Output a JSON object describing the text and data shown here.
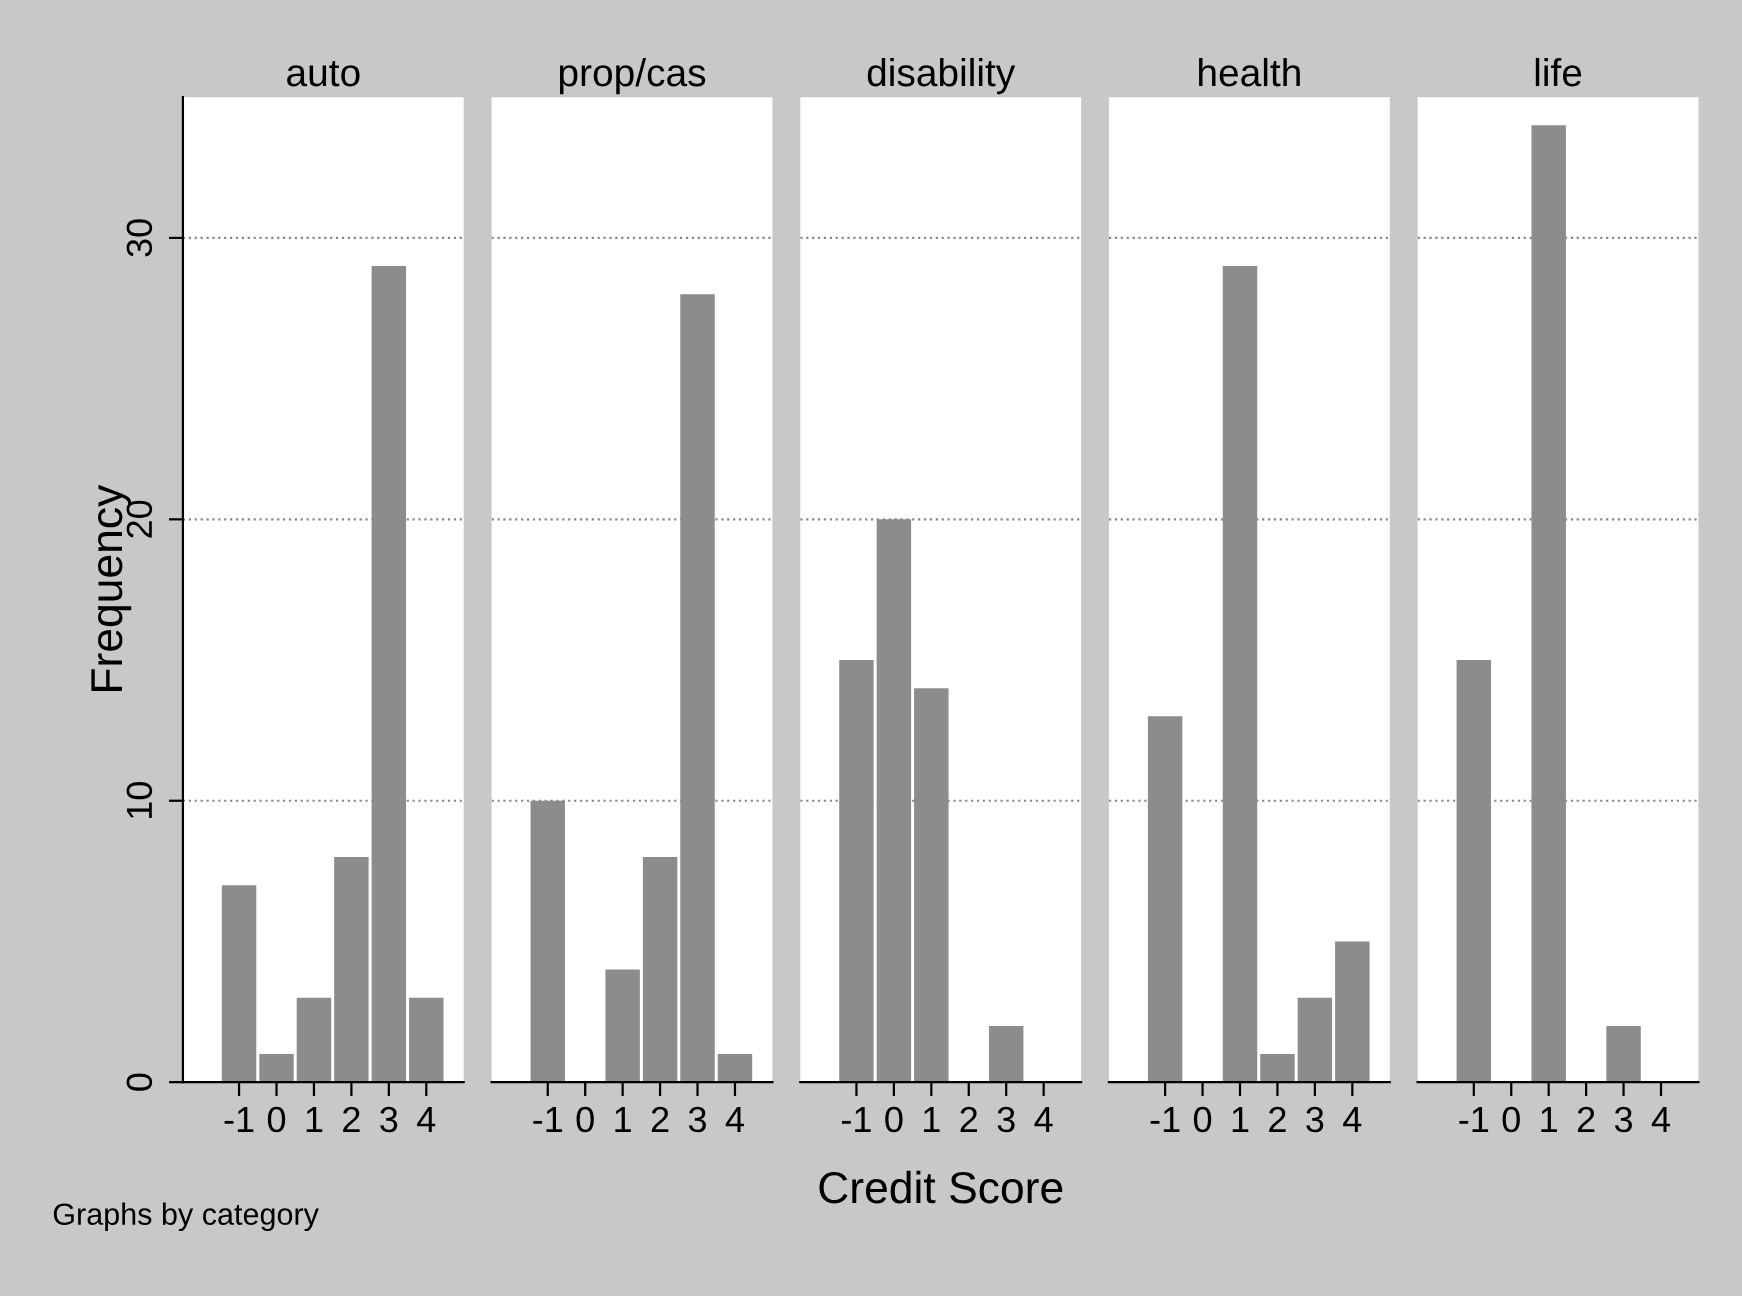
{
  "chart_data": [
    {
      "type": "histogram",
      "title": "auto",
      "ylabel": "Frequency",
      "bins": [
        -1.5,
        -0.5,
        0.5,
        1.5,
        2.5,
        3.5,
        4.5
      ],
      "values": [
        7,
        1,
        3,
        8,
        29,
        3
      ],
      "color": "#8c8c8c",
      "xlim": [
        -2.5,
        5
      ],
      "ylim": [
        0,
        35
      ],
      "xticks": [
        -1,
        0,
        1,
        2,
        3,
        4
      ],
      "yticks": [
        0,
        10,
        20,
        30
      ],
      "grid": "y",
      "annotations": [
        "Graphs by category"
      ]
    },
    {
      "type": "histogram",
      "title": "prop/cas",
      "bins": [
        -1.5,
        -0.5,
        0.5,
        1.5,
        2.5,
        3.5,
        4.5
      ],
      "values": [
        10,
        0,
        4,
        8,
        28,
        1
      ],
      "color": "#8c8c8c",
      "xlim": [
        -2.5,
        5
      ],
      "ylim": [
        0,
        35
      ],
      "xticks": [
        -1,
        0,
        1,
        2,
        3,
        4
      ],
      "yticks": [
        0,
        10,
        20,
        30
      ],
      "grid": "y",
      "tick_labels": "x"
    },
    {
      "type": "histogram",
      "title": "disability",
      "xlabel": "Credit Score",
      "bins": [
        -1.5,
        -0.5,
        0.5,
        1.5,
        2.5,
        3.5,
        4.5
      ],
      "values": [
        15,
        20,
        14,
        0,
        2,
        0
      ],
      "color": "#8c8c8c",
      "xlim": [
        -2.5,
        5
      ],
      "ylim": [
        0,
        35
      ],
      "xticks": [
        -1,
        0,
        1,
        2,
        3,
        4
      ],
      "yticks": [
        0,
        10,
        20,
        30
      ],
      "grid": "y",
      "tick_labels": "x"
    },
    {
      "type": "histogram",
      "title": "health",
      "bins": [
        -1.5,
        -0.5,
        0.5,
        1.5,
        2.5,
        3.5,
        4.5
      ],
      "values": [
        13,
        0,
        29,
        1,
        3,
        5
      ],
      "color": "#8c8c8c",
      "xlim": [
        -2.5,
        5
      ],
      "ylim": [
        0,
        35
      ],
      "xticks": [
        -1,
        0,
        1,
        2,
        3,
        4
      ],
      "yticks": [
        0,
        10,
        20,
        30
      ],
      "grid": "y",
      "tick_labels": "x"
    },
    {
      "type": "histogram",
      "title": "life",
      "bins": [
        -1.5,
        -0.5,
        0.5,
        1.5,
        2.5,
        3.5,
        4.5
      ],
      "values": [
        15,
        0,
        34,
        0,
        2,
        0
      ],
      "color": "#8c8c8c",
      "xlim": [
        -2.5,
        5
      ],
      "ylim": [
        0,
        35
      ],
      "xticks": [
        -1,
        0,
        1,
        2,
        3,
        4
      ],
      "yticks": [
        0,
        10,
        20,
        30
      ],
      "grid": "y",
      "tick_labels": "x"
    }
  ]
}
